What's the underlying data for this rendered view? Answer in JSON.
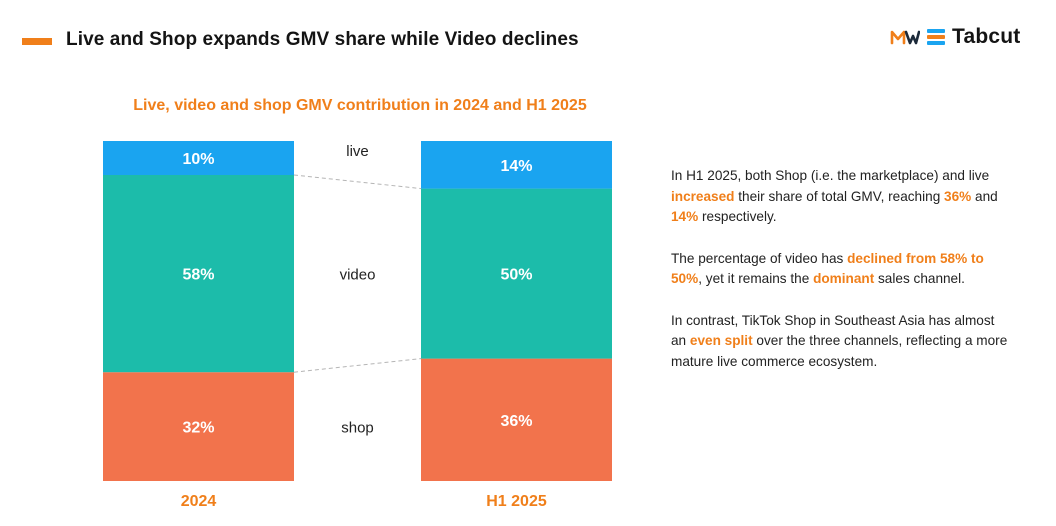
{
  "header": {
    "title": "Live and Shop expands GMV share while Video declines",
    "logo_text": "Tabcut",
    "accent_color": "#f07f1a"
  },
  "chart_data": {
    "type": "bar",
    "stacked": true,
    "title": "Live, video and shop GMV contribution in 2024 and H1 2025",
    "categories": [
      "2024",
      "H1 2025"
    ],
    "series": [
      {
        "name": "shop",
        "values": [
          32,
          36
        ],
        "labels": [
          "32%",
          "36%"
        ],
        "color": "#f2734c"
      },
      {
        "name": "video",
        "values": [
          58,
          50
        ],
        "labels": [
          "58%",
          "50%"
        ],
        "color": "#1cbcaa"
      },
      {
        "name": "live",
        "values": [
          10,
          14
        ],
        "labels": [
          "10%",
          "14%"
        ],
        "color": "#1aa4f0"
      }
    ],
    "ylim": [
      0,
      100
    ],
    "legend": "between-bars",
    "grid": false,
    "connectors": true
  },
  "insights": {
    "p1": {
      "before": "In H1 2025, both Shop (i.e. the marketplace) and live ",
      "hl1": "increased",
      "mid1": " their share of total GMV, reaching ",
      "hl2": "36%",
      "mid2": " and ",
      "hl3": "14%",
      "after": " respectively."
    },
    "p2": {
      "before": "The percentage of video has ",
      "hl1": "declined from 58% to 50%",
      "mid1": ", yet it remains the ",
      "hl2": "dominant",
      "after": " sales channel."
    },
    "p3": {
      "before": "In contrast, TikTok Shop in Southeast Asia has almost an ",
      "hl1": "even split",
      "after": " over the three channels, reflecting a more mature live commerce ecosystem."
    }
  }
}
